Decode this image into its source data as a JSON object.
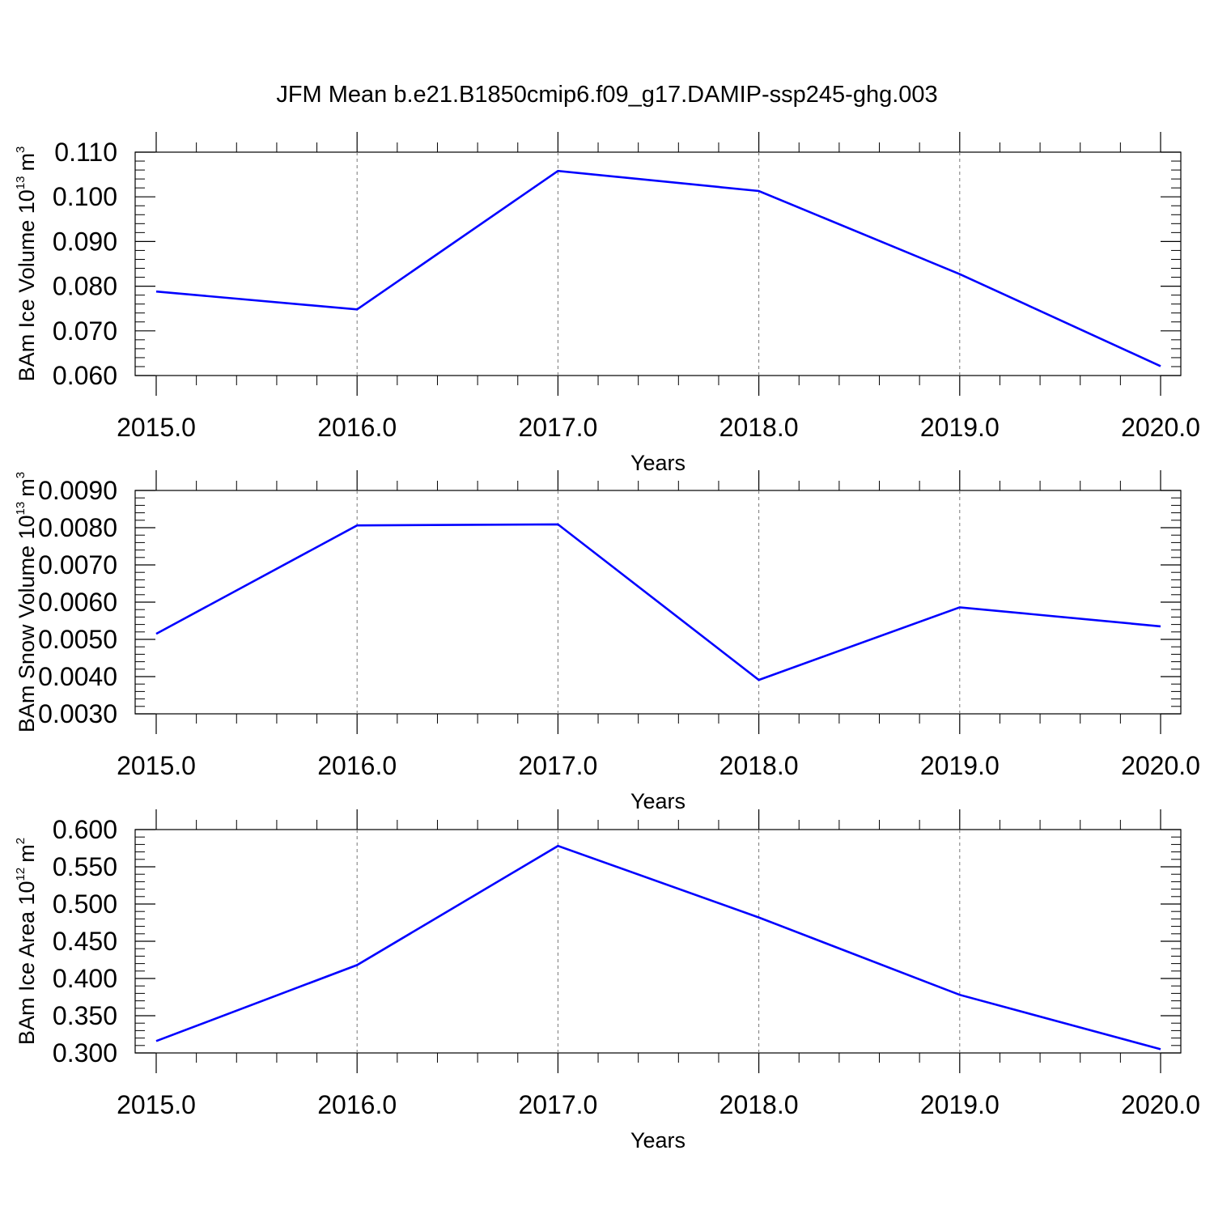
{
  "figure": {
    "title": "JFM Mean b.e21.B1850cmip6.f09_g17.DAMIP-ssp245-ghg.003"
  },
  "colors": {
    "line": "#0000ff",
    "axes": "#000000",
    "grid": "#777777",
    "background": "#ffffff"
  },
  "chart_data": [
    {
      "type": "line",
      "title": "",
      "xlabel": "Years",
      "ylabel": {
        "text": "BAm Ice Volume 10",
        "exp": "13",
        "unit": "m",
        "unit_exp": "3"
      },
      "x": [
        2015,
        2016,
        2017,
        2018,
        2019,
        2020
      ],
      "xlim": [
        2015,
        2020
      ],
      "x_ticks": [
        "2015.0",
        "2016.0",
        "2017.0",
        "2018.0",
        "2019.0",
        "2020.0"
      ],
      "ylim": [
        0.06,
        0.11
      ],
      "y_ticks": [
        "0.060",
        "0.070",
        "0.080",
        "0.090",
        "0.100",
        "0.110"
      ],
      "series": [
        {
          "values": [
            0.0788,
            0.0748,
            0.1058,
            0.1013,
            0.0827,
            0.0621
          ]
        }
      ],
      "vertical_grid": true,
      "legend": "none"
    },
    {
      "type": "line",
      "title": "",
      "xlabel": "Years",
      "ylabel": {
        "text": "BAm Snow Volume 10",
        "exp": "13",
        "unit": "m",
        "unit_exp": "3"
      },
      "x": [
        2015,
        2016,
        2017,
        2018,
        2019,
        2020
      ],
      "xlim": [
        2015,
        2020
      ],
      "x_ticks": [
        "2015.0",
        "2016.0",
        "2017.0",
        "2018.0",
        "2019.0",
        "2020.0"
      ],
      "ylim": [
        0.003,
        0.009
      ],
      "y_ticks": [
        "0.0030",
        "0.0040",
        "0.0050",
        "0.0060",
        "0.0070",
        "0.0080",
        "0.0090"
      ],
      "series": [
        {
          "values": [
            0.00515,
            0.00806,
            0.00809,
            0.00391,
            0.00586,
            0.00535
          ]
        }
      ],
      "vertical_grid": true,
      "legend": "none"
    },
    {
      "type": "line",
      "title": "",
      "xlabel": "Years",
      "ylabel": {
        "text": "BAm Ice Area 10",
        "exp": "12",
        "unit": "m",
        "unit_exp": "2"
      },
      "x": [
        2015,
        2016,
        2017,
        2018,
        2019,
        2020
      ],
      "xlim": [
        2015,
        2020
      ],
      "x_ticks": [
        "2015.0",
        "2016.0",
        "2017.0",
        "2018.0",
        "2019.0",
        "2020.0"
      ],
      "ylim": [
        0.3,
        0.6
      ],
      "y_ticks": [
        "0.300",
        "0.350",
        "0.400",
        "0.450",
        "0.500",
        "0.550",
        "0.600"
      ],
      "series": [
        {
          "values": [
            0.316,
            0.418,
            0.578,
            0.482,
            0.378,
            0.305
          ]
        }
      ],
      "vertical_grid": true,
      "legend": "none"
    }
  ]
}
